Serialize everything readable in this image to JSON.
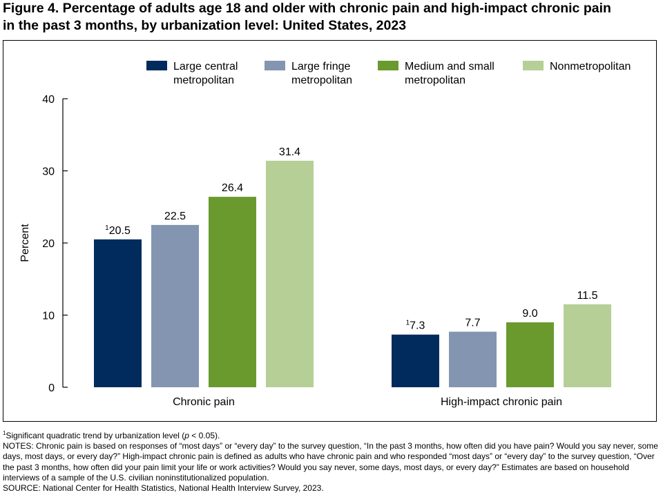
{
  "title": "Figure 4. Percentage of adults age 18 and older with chronic pain and high-impact chronic pain\nin the past 3 months, by urbanization level: United States, 2023",
  "chart_data": {
    "type": "bar",
    "categories": [
      "Chronic pain",
      "High-impact chronic pain"
    ],
    "series": [
      {
        "name": "Large central metropolitan",
        "name_lines": [
          "Large central",
          "metropolitan"
        ],
        "color": "#002b5c",
        "values": [
          20.5,
          7.3
        ],
        "labels": [
          "20.5",
          "7.3"
        ],
        "footnote": [
          "1",
          "1"
        ]
      },
      {
        "name": "Large fringe metropolitan",
        "name_lines": [
          "Large fringe",
          "metropolitan"
        ],
        "color": "#8395b0",
        "values": [
          22.5,
          7.7
        ],
        "labels": [
          "22.5",
          "7.7"
        ],
        "footnote": [
          "",
          ""
        ]
      },
      {
        "name": "Medium and small metropolitan",
        "name_lines": [
          "Medium and small",
          "metropolitan"
        ],
        "color": "#6a9a2e",
        "values": [
          26.4,
          9.0
        ],
        "labels": [
          "26.4",
          "9.0"
        ],
        "footnote": [
          "",
          ""
        ]
      },
      {
        "name": "Nonmetropolitan",
        "name_lines": [
          "Nonmetropolitan"
        ],
        "color": "#b5cf96",
        "values": [
          31.4,
          11.5
        ],
        "labels": [
          "31.4",
          "11.5"
        ],
        "footnote": [
          "",
          ""
        ]
      }
    ],
    "ylabel": "Percent",
    "xlabel": "",
    "ylim": [
      0,
      40
    ],
    "yticks": [
      0,
      10,
      20,
      30,
      40
    ],
    "ytick_labels": [
      "0",
      "10",
      "20",
      "30",
      "40"
    ],
    "grid": false,
    "legend_position": "top"
  },
  "notes": {
    "footnote_marker": "1",
    "footnote_text": "Significant quadratic trend by urbanization level (",
    "footnote_p": "p",
    "footnote_tail": " < 0.05).",
    "notes_text": "NOTES: Chronic pain is based on responses of “most days” or “every day” to the survey question, “In the past 3 months, how often did you have pain? Would you say never, some days, most days, or every day?” High-impact chronic pain is defined as adults who have chronic pain and who responded “most days” or “every day” to the survey question, “Over the past 3 months, how often did your pain limit your life or work activities? Would you say never, some days, most days, or every day?” Estimates are based on household interviews of a sample of the U.S. civilian noninstitutionalized population.",
    "source_text": "SOURCE: National Center for Health Statistics, National Health Interview Survey, 2023."
  }
}
